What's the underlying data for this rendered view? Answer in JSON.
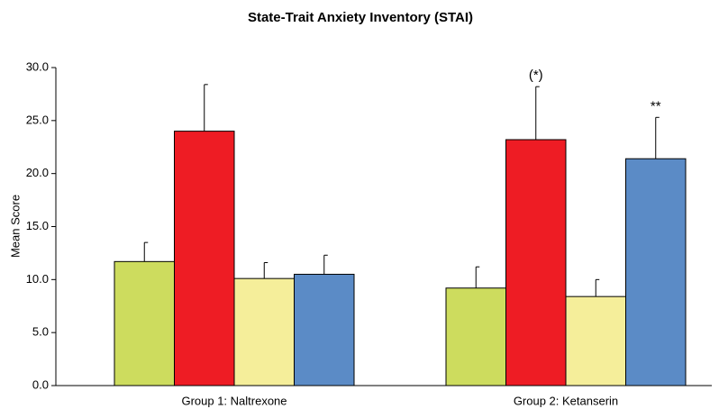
{
  "chart_data": {
    "type": "bar",
    "title": "State-Trait Anxiety Inventory (STAI)",
    "y_label": "Mean Score",
    "categories": [
      "Group 1:  Naltrexone",
      "Group 2: Ketanserin"
    ],
    "series": [
      {
        "color": "#cddc5e",
        "values": [
          11.7,
          9.2
        ],
        "errors": [
          1.8,
          2.0
        ]
      },
      {
        "color": "#ee1c24",
        "values": [
          24.0,
          23.2
        ],
        "errors": [
          4.4,
          5.0
        ],
        "annotations": [
          null,
          "(*)"
        ]
      },
      {
        "color": "#f5ee9a",
        "values": [
          10.1,
          8.4
        ],
        "errors": [
          1.5,
          1.6
        ]
      },
      {
        "color": "#5b8bc6",
        "values": [
          10.5,
          21.4
        ],
        "errors": [
          1.8,
          3.9
        ],
        "annotations": [
          null,
          "**"
        ]
      }
    ],
    "ylim": [
      0,
      30
    ],
    "yticks": [
      {
        "value": 0,
        "label": "0.0"
      },
      {
        "value": 5,
        "label": "5.0"
      },
      {
        "value": 10,
        "label": "10.0"
      },
      {
        "value": 15,
        "label": "15.0"
      },
      {
        "value": 20,
        "label": "20.0"
      },
      {
        "value": 25,
        "label": "25.0"
      },
      {
        "value": 30,
        "label": "30.0"
      }
    ],
    "grid": false
  }
}
